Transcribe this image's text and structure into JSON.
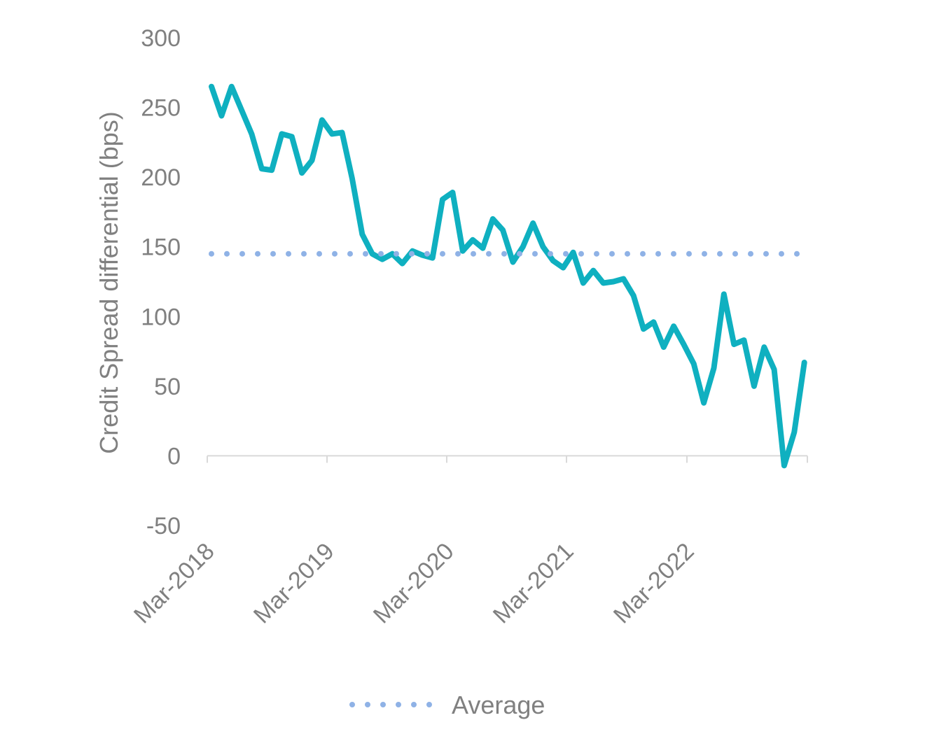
{
  "chart_data": {
    "type": "line",
    "title": "",
    "ylabel": "Credit Spread differential (bps)",
    "xlabel": "",
    "ylim": [
      -50,
      300
    ],
    "yticks": [
      300,
      250,
      200,
      150,
      100,
      50,
      0,
      -50
    ],
    "xtick_labels": [
      "Mar-2018",
      "Mar-2019",
      "Mar-2020",
      "Mar-2021",
      "Mar-2022"
    ],
    "x_start": "Mar-2018",
    "x_frequency": "monthly",
    "grid": false,
    "legend": {
      "position": "bottom",
      "entries": [
        "Average"
      ]
    },
    "series": [
      {
        "color": "#0fb0c0",
        "values": [
          265,
          244,
          265,
          248,
          231,
          206,
          205,
          231,
          229,
          203,
          212,
          241,
          231,
          232,
          199,
          159,
          145,
          141,
          145,
          138,
          147,
          144,
          142,
          184,
          189,
          147,
          155,
          149,
          170,
          162,
          139,
          150,
          167,
          150,
          140,
          135,
          146,
          124,
          133,
          124,
          125,
          127,
          115,
          91,
          96,
          78,
          93,
          80,
          66,
          38,
          63,
          116,
          80,
          83,
          50,
          78,
          62,
          -7,
          17,
          67
        ]
      },
      {
        "name": "Average",
        "color": "#8fb2e6",
        "style": "dotted",
        "values": [
          145,
          145,
          145,
          145,
          145,
          145,
          145,
          145,
          145,
          145,
          145,
          145,
          145,
          145,
          145,
          145,
          145,
          145,
          145,
          145,
          145,
          145,
          145,
          145,
          145,
          145,
          145,
          145,
          145,
          145,
          145,
          145,
          145,
          145,
          145,
          145,
          145,
          145,
          145,
          145,
          145,
          145,
          145,
          145,
          145,
          145,
          145,
          145,
          145,
          145,
          145,
          145,
          145,
          145,
          145,
          145,
          145,
          145,
          145,
          145
        ]
      }
    ]
  }
}
